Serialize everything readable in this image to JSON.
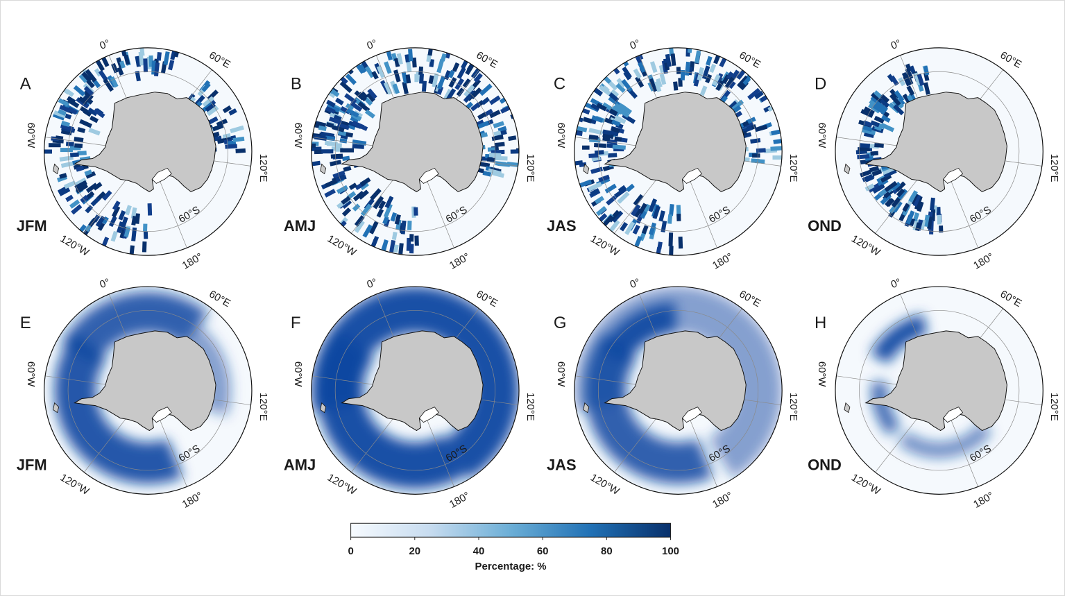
{
  "figure": {
    "panels": [
      {
        "letter": "A",
        "season": "JFM",
        "kind": "tracks"
      },
      {
        "letter": "B",
        "season": "AMJ",
        "kind": "tracks"
      },
      {
        "letter": "C",
        "season": "JAS",
        "kind": "tracks"
      },
      {
        "letter": "D",
        "season": "OND",
        "kind": "tracks"
      },
      {
        "letter": "E",
        "season": "JFM",
        "kind": "field"
      },
      {
        "letter": "F",
        "season": "AMJ",
        "kind": "field"
      },
      {
        "letter": "G",
        "season": "JAS",
        "kind": "field"
      },
      {
        "letter": "H",
        "season": "OND",
        "kind": "field"
      }
    ],
    "graticule_labels": {
      "lon_0": "0°",
      "lon_60e": "60°E",
      "lon_120e": "120°E",
      "lon_180": "180°",
      "lon_120w": "120°W",
      "lon_60w": "60°W",
      "lat_60s": "60°S"
    },
    "colorbar": {
      "title": "Percentage: %",
      "min": 0,
      "max": 100,
      "ticks": [
        "0",
        "20",
        "40",
        "60",
        "80",
        "100"
      ],
      "colors": {
        "low": "#f7fbff",
        "mid_low": "#c6dbef",
        "mid": "#6baed6",
        "mid_high": "#2171b5",
        "high": "#08306b"
      }
    },
    "colors": {
      "ocean": "#f5f9fd",
      "land": "#c8c8c8",
      "ice_shelf": "#ffffff",
      "grid": "#8a8a8a",
      "outline": "#111111"
    }
  }
}
